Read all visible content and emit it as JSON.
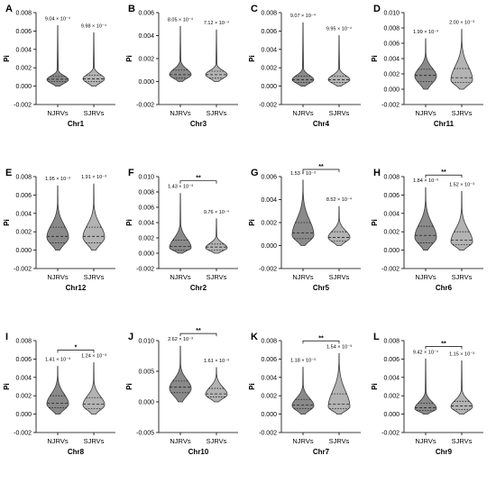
{
  "figure": {
    "ylabel": "Pi",
    "colors": {
      "njrv_fill": "#8a8a8a",
      "sjrv_fill": "#b3b3b3",
      "outline": "#3a3a3a",
      "text": "#000000"
    }
  },
  "chart_data": [
    {
      "panel": "A",
      "type": "violin",
      "chromosome": "Chr1",
      "categories": [
        "NJRVs",
        "SJRVs"
      ],
      "ylabel": "Pi",
      "ylim": [
        -0.002,
        0.008
      ],
      "yticks": [
        "-0.002",
        "0.000",
        "0.002",
        "0.004",
        "0.006",
        "0.008"
      ],
      "means": [
        "9.04 × 10⁻⁴",
        "9.98 × 10⁻⁴"
      ],
      "significance": "",
      "series": [
        {
          "name": "NJRVs",
          "min": 0.0,
          "q1": 0.0005,
          "median": 0.00075,
          "q3": 0.00105,
          "max": 0.0066,
          "mode": 0.0007
        },
        {
          "name": "SJRVs",
          "min": 0.0,
          "q1": 0.0005,
          "median": 0.0008,
          "q3": 0.0012,
          "max": 0.0058,
          "mode": 0.0008
        }
      ]
    },
    {
      "panel": "B",
      "type": "violin",
      "chromosome": "Chr3",
      "categories": [
        "NJRVs",
        "SJRVs"
      ],
      "ylabel": "Pi",
      "ylim": [
        -0.002,
        0.006
      ],
      "yticks": [
        "-0.002",
        "0.000",
        "0.002",
        "0.004",
        "0.006"
      ],
      "means": [
        "8.05 × 10⁻⁴",
        "7.12 × 10⁻⁴"
      ],
      "significance": "",
      "series": [
        {
          "name": "NJRVs",
          "min": 0.0,
          "q1": 0.0003,
          "median": 0.0006,
          "q3": 0.001,
          "max": 0.0048,
          "mode": 0.0006
        },
        {
          "name": "SJRVs",
          "min": 0.0,
          "q1": 0.0003,
          "median": 0.0006,
          "q3": 0.0009,
          "max": 0.0045,
          "mode": 0.0006
        }
      ]
    },
    {
      "panel": "C",
      "type": "violin",
      "chromosome": "Chr4",
      "categories": [
        "NJRVs",
        "SJRVs"
      ],
      "ylabel": "Pi",
      "ylim": [
        -0.002,
        0.008
      ],
      "yticks": [
        "-0.002",
        "0.000",
        "0.002",
        "0.004",
        "0.006",
        "0.008"
      ],
      "means": [
        "9.07 × 10⁻⁴",
        "9.95 × 10⁻⁴"
      ],
      "significance": "",
      "series": [
        {
          "name": "NJRVs",
          "min": 0.0,
          "q1": 0.0004,
          "median": 0.0007,
          "q3": 0.0011,
          "max": 0.0069,
          "mode": 0.0007
        },
        {
          "name": "SJRVs",
          "min": 0.0,
          "q1": 0.0004,
          "median": 0.0007,
          "q3": 0.0011,
          "max": 0.0055,
          "mode": 0.0007
        }
      ]
    },
    {
      "panel": "D",
      "type": "violin",
      "chromosome": "Chr11",
      "categories": [
        "NJRVs",
        "SJRVs"
      ],
      "ylabel": "Pi",
      "ylim": [
        -0.002,
        0.01
      ],
      "yticks": [
        "-0.002",
        "0.000",
        "0.002",
        "0.004",
        "0.006",
        "0.008",
        "0.010"
      ],
      "means": [
        "1.99 × 10⁻³",
        "2.00 × 10⁻³"
      ],
      "significance": "",
      "series": [
        {
          "name": "NJRVs",
          "min": 0.0,
          "q1": 0.001,
          "median": 0.0018,
          "q3": 0.0026,
          "max": 0.0066,
          "mode": 0.0017
        },
        {
          "name": "SJRVs",
          "min": 0.0,
          "q1": 0.0009,
          "median": 0.0015,
          "q3": 0.0027,
          "max": 0.0078,
          "mode": 0.0012
        }
      ]
    },
    {
      "panel": "E",
      "type": "violin",
      "chromosome": "Chr12",
      "categories": [
        "NJRVs",
        "SJRVs"
      ],
      "ylabel": "Pi",
      "ylim": [
        -0.002,
        0.008
      ],
      "yticks": [
        "-0.002",
        "0.000",
        "0.002",
        "0.004",
        "0.006",
        "0.008"
      ],
      "means": [
        "1.95 × 10⁻³",
        "1.91 × 10⁻³"
      ],
      "significance": "",
      "series": [
        {
          "name": "NJRVs",
          "min": 0.0,
          "q1": 0.0008,
          "median": 0.0015,
          "q3": 0.0025,
          "max": 0.007,
          "mode": 0.0014
        },
        {
          "name": "SJRVs",
          "min": 0.0,
          "q1": 0.0008,
          "median": 0.0015,
          "q3": 0.0025,
          "max": 0.0072,
          "mode": 0.0014
        }
      ]
    },
    {
      "panel": "F",
      "type": "violin",
      "chromosome": "Chr2",
      "categories": [
        "NJRVs",
        "SJRVs"
      ],
      "ylabel": "Pi",
      "ylim": [
        -0.002,
        0.01
      ],
      "yticks": [
        "-0.002",
        "0.000",
        "0.002",
        "0.004",
        "0.006",
        "0.008",
        "0.010"
      ],
      "means": [
        "1.43 × 10⁻³",
        "9.76 × 10⁻⁴"
      ],
      "significance": "**",
      "series": [
        {
          "name": "NJRVs",
          "min": 0.0,
          "q1": 0.0004,
          "median": 0.0009,
          "q3": 0.0017,
          "max": 0.0078,
          "mode": 0.0007
        },
        {
          "name": "SJRVs",
          "min": 0.0,
          "q1": 0.0004,
          "median": 0.0008,
          "q3": 0.0012,
          "max": 0.0045,
          "mode": 0.0007
        }
      ]
    },
    {
      "panel": "G",
      "type": "violin",
      "chromosome": "Chr5",
      "categories": [
        "NJRVs",
        "SJRVs"
      ],
      "ylabel": "Pi",
      "ylim": [
        -0.002,
        0.006
      ],
      "yticks": [
        "-0.002",
        "0.000",
        "0.002",
        "0.004",
        "0.006"
      ],
      "means": [
        "1.53 × 10⁻³",
        "8.52 × 10⁻⁴"
      ],
      "significance": "**",
      "series": [
        {
          "name": "NJRVs",
          "min": 0.0,
          "q1": 0.0006,
          "median": 0.0011,
          "q3": 0.002,
          "max": 0.0057,
          "mode": 0.0009
        },
        {
          "name": "SJRVs",
          "min": 0.0,
          "q1": 0.0004,
          "median": 0.0007,
          "q3": 0.0012,
          "max": 0.0034,
          "mode": 0.0007
        }
      ]
    },
    {
      "panel": "H",
      "type": "violin",
      "chromosome": "Chr6",
      "categories": [
        "NJRVs",
        "SJRVs"
      ],
      "ylabel": "Pi",
      "ylim": [
        -0.002,
        0.008
      ],
      "yticks": [
        "-0.002",
        "0.000",
        "0.002",
        "0.004",
        "0.006",
        "0.008"
      ],
      "means": [
        "1.84 × 10⁻³",
        "1.52 × 10⁻³"
      ],
      "significance": "**",
      "series": [
        {
          "name": "NJRVs",
          "min": 0.0,
          "q1": 0.0008,
          "median": 0.0016,
          "q3": 0.0026,
          "max": 0.0068,
          "mode": 0.0014
        },
        {
          "name": "SJRVs",
          "min": 0.0,
          "q1": 0.0006,
          "median": 0.0011,
          "q3": 0.002,
          "max": 0.0064,
          "mode": 0.0009
        }
      ]
    },
    {
      "panel": "I",
      "type": "violin",
      "chromosome": "Chr8",
      "categories": [
        "NJRVs",
        "SJRVs"
      ],
      "ylabel": "Pi",
      "ylim": [
        -0.002,
        0.008
      ],
      "yticks": [
        "-0.002",
        "0.000",
        "0.002",
        "0.004",
        "0.006",
        "0.008"
      ],
      "means": [
        "1.41 × 10⁻³",
        "1.24 × 10⁻³"
      ],
      "significance": "*",
      "series": [
        {
          "name": "NJRVs",
          "min": 0.0,
          "q1": 0.0007,
          "median": 0.0012,
          "q3": 0.002,
          "max": 0.0052,
          "mode": 0.0011
        },
        {
          "name": "SJRVs",
          "min": 0.0,
          "q1": 0.0006,
          "median": 0.0011,
          "q3": 0.0018,
          "max": 0.0056,
          "mode": 0.001
        }
      ]
    },
    {
      "panel": "J",
      "type": "violin",
      "chromosome": "Chr10",
      "categories": [
        "NJRVs",
        "SJRVs"
      ],
      "ylabel": "Pi",
      "ylim": [
        -0.005,
        0.01
      ],
      "yticks": [
        "-0.005",
        "0.000",
        "0.005",
        "0.010"
      ],
      "means": [
        "2.62 × 10⁻³",
        "1.61 × 10⁻³"
      ],
      "significance": "**",
      "series": [
        {
          "name": "NJRVs",
          "min": 0.0,
          "q1": 0.0015,
          "median": 0.0024,
          "q3": 0.0034,
          "max": 0.0091,
          "mode": 0.0022
        },
        {
          "name": "SJRVs",
          "min": 0.0,
          "q1": 0.0008,
          "median": 0.0013,
          "q3": 0.0022,
          "max": 0.0056,
          "mode": 0.0012
        }
      ]
    },
    {
      "panel": "K",
      "type": "violin",
      "chromosome": "Chr7",
      "categories": [
        "NJRVs",
        "SJRVs"
      ],
      "ylabel": "Pi",
      "ylim": [
        -0.002,
        0.008
      ],
      "yticks": [
        "-0.002",
        "0.000",
        "0.002",
        "0.004",
        "0.006",
        "0.008"
      ],
      "means": [
        "1.18 × 10⁻³",
        "1.54 × 10⁻³"
      ],
      "significance": "**",
      "series": [
        {
          "name": "NJRVs",
          "min": 0.0,
          "q1": 0.0006,
          "median": 0.001,
          "q3": 0.0016,
          "max": 0.0051,
          "mode": 0.0009
        },
        {
          "name": "SJRVs",
          "min": 0.0,
          "q1": 0.0006,
          "median": 0.0011,
          "q3": 0.0022,
          "max": 0.0066,
          "mode": 0.0008
        }
      ]
    },
    {
      "panel": "L",
      "type": "violin",
      "chromosome": "Chr9",
      "categories": [
        "NJRVs",
        "SJRVs"
      ],
      "ylabel": "Pi",
      "ylim": [
        -0.002,
        0.008
      ],
      "yticks": [
        "-0.002",
        "0.000",
        "0.002",
        "0.004",
        "0.006",
        "0.008"
      ],
      "means": [
        "9.42 × 10⁻⁴",
        "1.15 × 10⁻³"
      ],
      "significance": "**",
      "series": [
        {
          "name": "NJRVs",
          "min": 0.0,
          "q1": 0.0004,
          "median": 0.0007,
          "q3": 0.0012,
          "max": 0.006,
          "mode": 0.0006
        },
        {
          "name": "SJRVs",
          "min": 0.0,
          "q1": 0.0005,
          "median": 0.0009,
          "q3": 0.0014,
          "max": 0.0058,
          "mode": 0.0008
        }
      ]
    }
  ]
}
